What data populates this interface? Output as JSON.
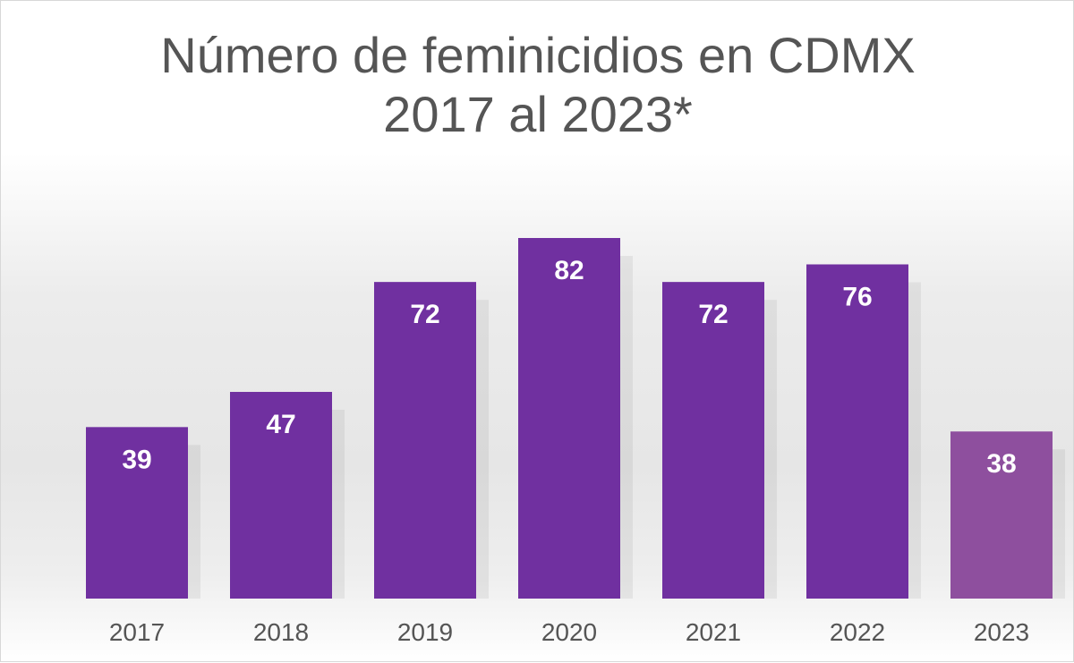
{
  "chart_data": {
    "type": "bar",
    "title": "Número de feminicidios en CDMX",
    "subtitle": "2017 al 2023*",
    "categories": [
      "2017",
      "2018",
      "2019",
      "2020",
      "2021",
      "2022",
      "2023"
    ],
    "values": [
      39,
      47,
      72,
      82,
      72,
      76,
      38
    ],
    "data_labels": [
      "39",
      "47",
      "72",
      "82",
      "72",
      "76",
      "38"
    ],
    "xlabel": "",
    "ylabel": "",
    "ylim": [
      0,
      82
    ],
    "grid": false,
    "legend": "none",
    "colors": {
      "bar": "#7030a0",
      "bar_highlight": "#8e4f9e",
      "title": "#555555",
      "data_label": "#ffffff",
      "tick_label": "#555555"
    }
  }
}
